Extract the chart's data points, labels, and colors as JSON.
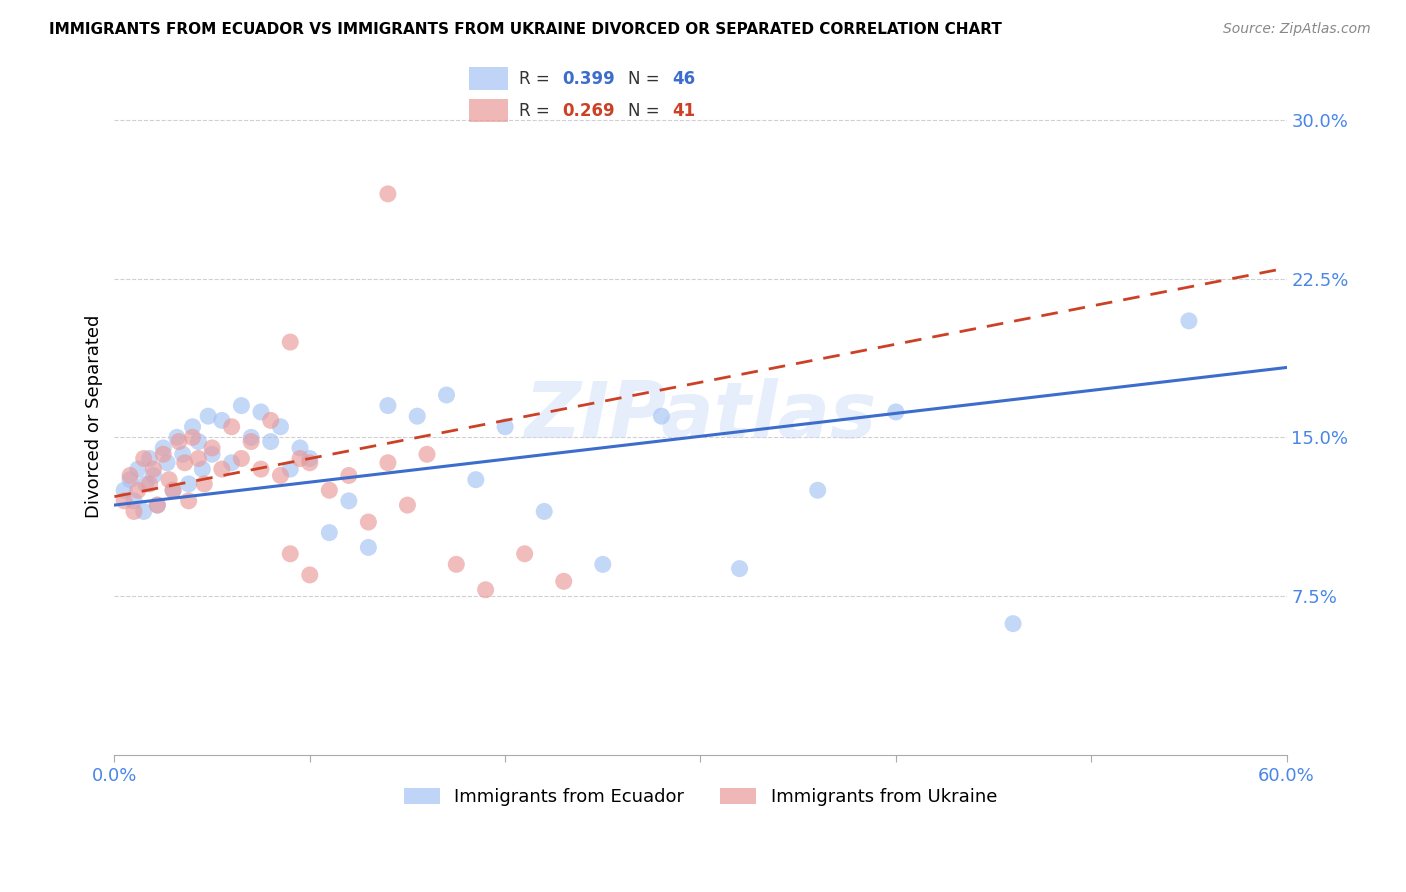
{
  "title": "IMMIGRANTS FROM ECUADOR VS IMMIGRANTS FROM UKRAINE DIVORCED OR SEPARATED CORRELATION CHART",
  "source": "Source: ZipAtlas.com",
  "ylabel": "Divorced or Separated",
  "xlim": [
    0.0,
    0.6
  ],
  "ylim": [
    0.0,
    0.32
  ],
  "ytick_vals": [
    0.075,
    0.15,
    0.225,
    0.3
  ],
  "ytick_labels": [
    "7.5%",
    "15.0%",
    "22.5%",
    "30.0%"
  ],
  "xtick_vals": [
    0.0,
    0.1,
    0.2,
    0.3,
    0.4,
    0.5,
    0.6
  ],
  "xtick_labels": [
    "0.0%",
    "",
    "",
    "",
    "",
    "",
    "60.0%"
  ],
  "ecuador_color": "#a4c2f4",
  "ukraine_color": "#ea9999",
  "ecuador_line_color": "#3d6dcc",
  "ukraine_line_color": "#cc4125",
  "tick_label_color": "#4a86e8",
  "watermark": "ZIPatlas",
  "legend_R_ecuador": "0.399",
  "legend_N_ecuador": "46",
  "legend_R_ukraine": "0.269",
  "legend_N_ukraine": "41",
  "ecuador_x": [
    0.005,
    0.008,
    0.01,
    0.012,
    0.015,
    0.016,
    0.018,
    0.02,
    0.022,
    0.025,
    0.027,
    0.03,
    0.032,
    0.035,
    0.038,
    0.04,
    0.043,
    0.045,
    0.048,
    0.05,
    0.055,
    0.06,
    0.065,
    0.07,
    0.075,
    0.08,
    0.085,
    0.09,
    0.095,
    0.1,
    0.11,
    0.12,
    0.13,
    0.14,
    0.155,
    0.17,
    0.185,
    0.2,
    0.22,
    0.25,
    0.28,
    0.32,
    0.36,
    0.4,
    0.46,
    0.55
  ],
  "ecuador_y": [
    0.125,
    0.13,
    0.12,
    0.135,
    0.115,
    0.128,
    0.14,
    0.132,
    0.118,
    0.145,
    0.138,
    0.125,
    0.15,
    0.142,
    0.128,
    0.155,
    0.148,
    0.135,
    0.16,
    0.142,
    0.158,
    0.138,
    0.165,
    0.15,
    0.162,
    0.148,
    0.155,
    0.135,
    0.145,
    0.14,
    0.105,
    0.12,
    0.098,
    0.165,
    0.16,
    0.17,
    0.13,
    0.155,
    0.115,
    0.09,
    0.16,
    0.088,
    0.125,
    0.162,
    0.062,
    0.205
  ],
  "ukraine_x": [
    0.005,
    0.008,
    0.01,
    0.012,
    0.015,
    0.018,
    0.02,
    0.022,
    0.025,
    0.028,
    0.03,
    0.033,
    0.036,
    0.038,
    0.04,
    0.043,
    0.046,
    0.05,
    0.055,
    0.06,
    0.065,
    0.07,
    0.075,
    0.08,
    0.085,
    0.09,
    0.095,
    0.1,
    0.11,
    0.12,
    0.13,
    0.14,
    0.15,
    0.16,
    0.175,
    0.19,
    0.21,
    0.23,
    0.14,
    0.09,
    0.1
  ],
  "ukraine_y": [
    0.12,
    0.132,
    0.115,
    0.125,
    0.14,
    0.128,
    0.135,
    0.118,
    0.142,
    0.13,
    0.125,
    0.148,
    0.138,
    0.12,
    0.15,
    0.14,
    0.128,
    0.145,
    0.135,
    0.155,
    0.14,
    0.148,
    0.135,
    0.158,
    0.132,
    0.095,
    0.14,
    0.138,
    0.125,
    0.132,
    0.11,
    0.138,
    0.118,
    0.142,
    0.09,
    0.078,
    0.095,
    0.082,
    0.265,
    0.195,
    0.085
  ],
  "ecu_line_x0": 0.0,
  "ecu_line_x1": 0.6,
  "ecu_line_y0": 0.118,
  "ecu_line_y1": 0.183,
  "ukr_line_x0": 0.0,
  "ukr_line_x1": 0.6,
  "ukr_line_y0": 0.122,
  "ukr_line_y1": 0.23
}
